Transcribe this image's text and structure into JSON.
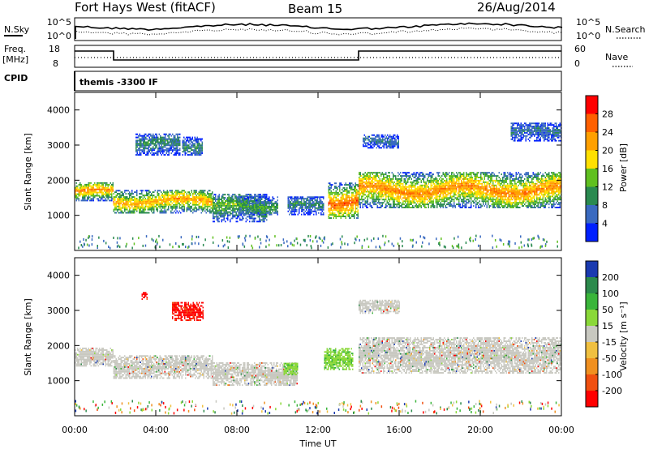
{
  "header": {
    "title": "Fort Hays West (fitACF)",
    "beam": "Beam 15",
    "date": "26/Aug/2014"
  },
  "top_panels": {
    "nsky_label": "N.Sky",
    "nsky_ticks": [
      "10^5",
      "10^0"
    ],
    "nsearch_label": "N.Search",
    "nsearch_ticks": [
      "10^5",
      "10^0"
    ],
    "freq_label": "Freq.",
    "freq_unit": "[MHz]",
    "freq_ticks": [
      "18",
      "8"
    ],
    "nave_label": "Nave",
    "nave_ticks": [
      "60",
      "0"
    ],
    "cpid_label": "CPID",
    "cpid_text": "themis -3300 IF"
  },
  "chart_data": [
    {
      "type": "heatmap",
      "parameter": "Power",
      "ylabel": "Slant Range [km]",
      "xlabel": "Time UT",
      "x_ticks": [
        "00:00",
        "04:00",
        "08:00",
        "12:00",
        "16:00",
        "20:00",
        "00:00"
      ],
      "y_ticks": [
        1000,
        2000,
        3000,
        4000
      ],
      "ylim": [
        0,
        4500
      ],
      "xlim_hours": [
        0,
        24
      ],
      "colorbar_label": "Power [dB]",
      "colorbar_ticks": [
        "28",
        "24",
        "20",
        "16",
        "12",
        "8",
        "4"
      ],
      "colorbar_colors": [
        "#ff0000",
        "#ff6000",
        "#ffa000",
        "#ffe000",
        "#60c020",
        "#2a8a50",
        "#3a6ac0",
        "#0020ff"
      ],
      "regions": [
        {
          "t0": 0.0,
          "t1": 1.9,
          "r0": 1400,
          "r1": 1900,
          "peak": 24
        },
        {
          "t0": 1.9,
          "t1": 6.8,
          "r0": 1050,
          "r1": 1700,
          "peak": 22
        },
        {
          "t0": 3.0,
          "t1": 5.2,
          "r0": 2700,
          "r1": 3300,
          "peak": 10
        },
        {
          "t0": 5.3,
          "t1": 6.3,
          "r0": 2700,
          "r1": 3200,
          "peak": 10
        },
        {
          "t0": 6.8,
          "t1": 9.5,
          "r0": 800,
          "r1": 1600,
          "peak": 14
        },
        {
          "t0": 8.0,
          "t1": 10.0,
          "r0": 1000,
          "r1": 1500,
          "peak": 12
        },
        {
          "t0": 10.5,
          "t1": 12.3,
          "r0": 1000,
          "r1": 1500,
          "peak": 10
        },
        {
          "t0": 12.5,
          "t1": 14.0,
          "r0": 900,
          "r1": 1900,
          "peak": 26
        },
        {
          "t0": 14.0,
          "t1": 24.0,
          "r0": 1200,
          "r1": 2200,
          "peak": 24
        },
        {
          "t0": 14.2,
          "t1": 16.0,
          "r0": 2900,
          "r1": 3300,
          "peak": 8
        },
        {
          "t0": 21.5,
          "t1": 24.0,
          "r0": 3100,
          "r1": 3600,
          "peak": 8
        }
      ]
    },
    {
      "type": "heatmap",
      "parameter": "Velocity",
      "ylabel": "Slant Range [km]",
      "xlabel": "Time UT",
      "x_ticks": [
        "00:00",
        "04:00",
        "08:00",
        "12:00",
        "16:00",
        "20:00",
        "00:00"
      ],
      "y_ticks": [
        1000,
        2000,
        3000,
        4000
      ],
      "ylim": [
        0,
        4500
      ],
      "xlim_hours": [
        0,
        24
      ],
      "colorbar_label": "Velocity [m s⁻¹]",
      "colorbar_ticks": [
        "200",
        "100",
        "50",
        "15",
        "-15",
        "-50",
        "-100",
        "-200"
      ],
      "colorbar_colors": [
        "#1a3ab0",
        "#2c8a4c",
        "#3ab53a",
        "#8ad838",
        "#c8c8c0",
        "#f0c040",
        "#f09020",
        "#f05010",
        "#ff0000"
      ],
      "regions": [
        {
          "t0": 0.0,
          "t1": 1.9,
          "r0": 1400,
          "r1": 1900,
          "class": "ground"
        },
        {
          "t0": 1.9,
          "t1": 6.8,
          "r0": 1050,
          "r1": 1700,
          "class": "ground"
        },
        {
          "t0": 4.8,
          "t1": 6.3,
          "r0": 2700,
          "r1": 3200,
          "class": "neg-large"
        },
        {
          "t0": 3.3,
          "t1": 3.6,
          "r0": 3300,
          "r1": 3500,
          "class": "neg-large"
        },
        {
          "t0": 6.8,
          "t1": 11.0,
          "r0": 850,
          "r1": 1500,
          "class": "ground"
        },
        {
          "t0": 10.3,
          "t1": 11.0,
          "r0": 1150,
          "r1": 1500,
          "class": "pos-small"
        },
        {
          "t0": 12.3,
          "t1": 13.7,
          "r0": 1300,
          "r1": 1900,
          "class": "pos-small"
        },
        {
          "t0": 14.0,
          "t1": 24.0,
          "r0": 1200,
          "r1": 2200,
          "class": "ground"
        },
        {
          "t0": 14.0,
          "t1": 16.0,
          "r0": 2900,
          "r1": 3300,
          "class": "ground"
        }
      ]
    }
  ]
}
